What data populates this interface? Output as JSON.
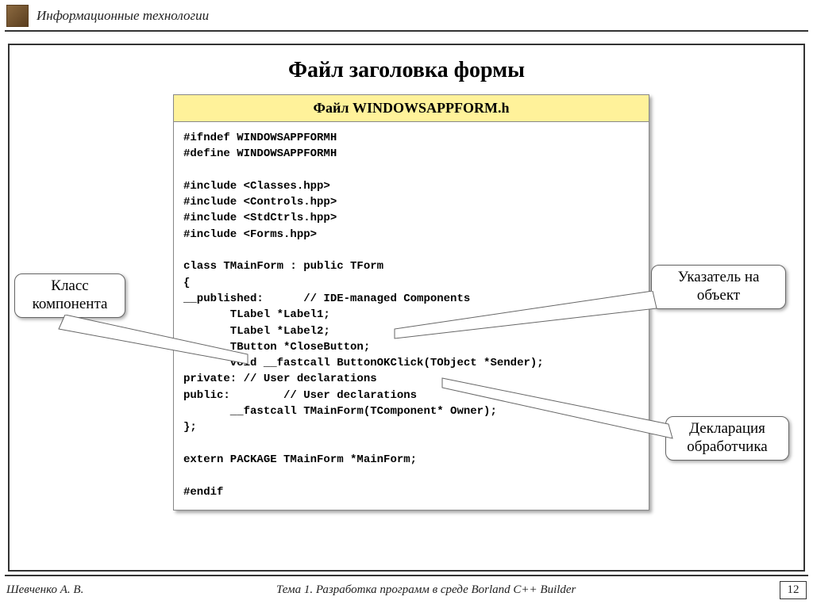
{
  "header": {
    "title": "Информационные технологии"
  },
  "slide": {
    "title": "Файл заголовка формы"
  },
  "panel": {
    "title": "Файл WINDOWSAPPFORM.h"
  },
  "code": {
    "l1": "#ifndef WINDOWSAPPFORMH",
    "l2": "#define WINDOWSAPPFORMH",
    "l3": "",
    "l4": "#include <Classes.hpp>",
    "l5": "#include <Controls.hpp>",
    "l6": "#include <StdCtrls.hpp>",
    "l7": "#include <Forms.hpp>",
    "l8": "",
    "l9": "class TMainForm : public TForm",
    "l10": "{",
    "l11": "__published:      // IDE-managed Components",
    "l12": "       TLabel *Label1;",
    "l13": "       TLabel *Label2;",
    "l14": "       TButton *CloseButton;",
    "l15": "       void __fastcall ButtonOKClick(TObject *Sender);",
    "l16": "private: // User declarations",
    "l17": "public:        // User declarations",
    "l18": "       __fastcall TMainForm(TComponent* Owner);",
    "l19": "};",
    "l20": "",
    "l21": "extern PACKAGE TMainForm *MainForm;",
    "l22": "",
    "l23": "#endif"
  },
  "callouts": {
    "class_component": "Класс\nкомпонента",
    "pointer_object": "Указатель на\nобъект",
    "handler_decl": "Декларация\nобработчика"
  },
  "footer": {
    "author": "Шевченко А. В.",
    "topic": "Тема 1. Разработка программ в среде Borland C++ Builder",
    "page": "12"
  },
  "colors": {
    "panel_header_bg": "#fff29a",
    "border": "#333333",
    "shadow": "rgba(0,0,0,0.35)"
  }
}
